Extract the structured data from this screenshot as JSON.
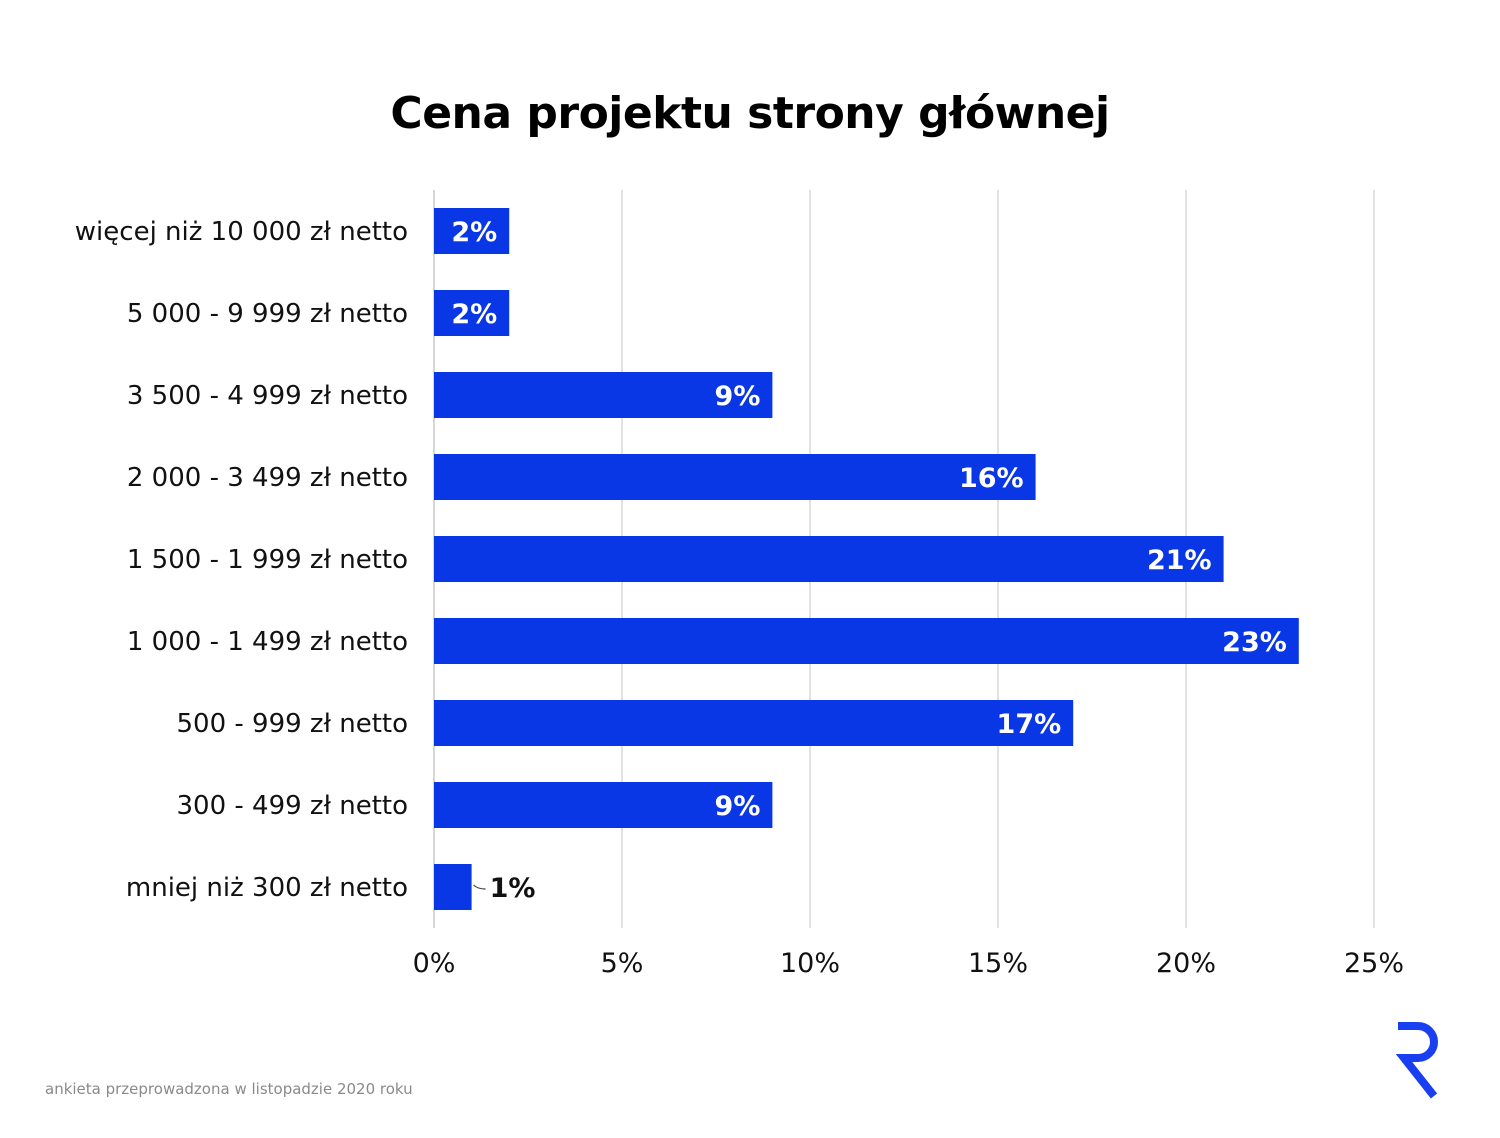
{
  "chart_data": {
    "type": "bar",
    "orientation": "horizontal",
    "title": "Cena projektu strony głównej",
    "categories": [
      "więcej niż 10 000 zł netto",
      "5 000 - 9 999 zł netto",
      "3 500 - 4 999 zł netto",
      "2 000 - 3 499 zł netto",
      "1 500 - 1 999 zł netto",
      "1 000 - 1 499 zł netto",
      "500 - 999 zł netto",
      "300 - 499 zł netto",
      "mniej niż 300 zł netto"
    ],
    "values": [
      2,
      2,
      9,
      16,
      21,
      23,
      17,
      9,
      1
    ],
    "data_labels": [
      "2%",
      "2%",
      "9%",
      "16%",
      "21%",
      "23%",
      "17%",
      "9%",
      "1%"
    ],
    "x_ticks": [
      "0%",
      "5%",
      "10%",
      "15%",
      "20%",
      "25%"
    ],
    "xlim": [
      0,
      25
    ],
    "grid": true,
    "bar_color": "#0a37e6",
    "xlabel": "",
    "ylabel": ""
  },
  "footnote": "ankieta przeprowadzona w listopadzie 2020 roku",
  "logo": {
    "icon": "brand-r-logo-icon",
    "color": "#1a3ff0"
  }
}
